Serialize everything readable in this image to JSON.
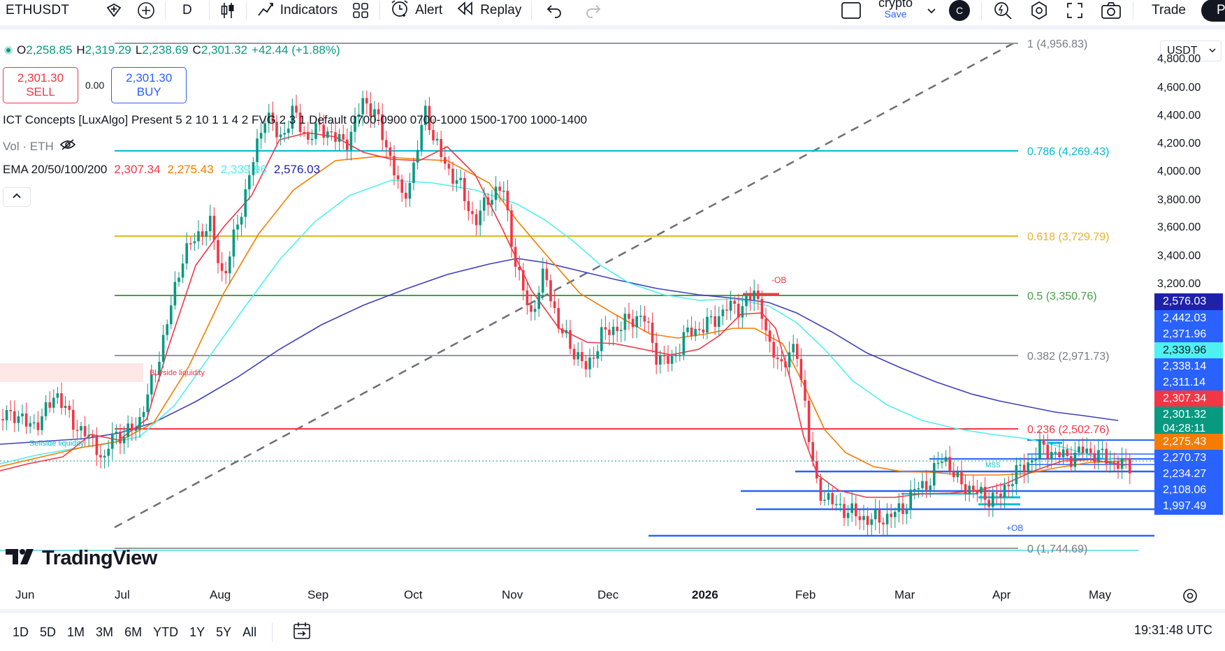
{
  "toolbar": {
    "symbol": "ETHUSDT",
    "interval": "D",
    "indicators_label": "Indicators",
    "alert_label": "Alert",
    "replay_label": "Replay",
    "layout_name": "crypto",
    "layout_save": "Save",
    "avatar_letter": "C",
    "trade_label": "Trade",
    "publish_label": "Pu"
  },
  "legend": {
    "o_label": "O",
    "o_value": "2,258.85",
    "h_label": "H",
    "h_value": "2,319.29",
    "l_label": "L",
    "l_value": "2,238.69",
    "c_label": "C",
    "c_value": "2,301.32",
    "change": "+42.44 (+1.88%)",
    "sell_price": "2,301.30",
    "sell_label": "SELL",
    "spread": "0.00",
    "buy_price": "2,301.30",
    "buy_label": "BUY",
    "ict_indicator": "ICT Concepts [LuxAlgo] Present 5 2 10 1 1 4 2 FVG 2 3 1 Default 0700-0900 0700-1000 1500-1700 1000-1400",
    "vol_indicator": "Vol · ETH",
    "ema_indicator": "EMA 20/50/100/200",
    "ema_values": [
      "2,307.34",
      "2,275.43",
      "2,339.96",
      "2,576.03"
    ]
  },
  "fib_levels": [
    {
      "label": "1 (4,956.83)",
      "color": "#787b86"
    },
    {
      "label": "0.786 (4,269.43)",
      "color": "#00bcd4"
    },
    {
      "label": "0.618 (3,729.79)",
      "color": "#e6b422"
    },
    {
      "label": "0.5 (3,350.76)",
      "color": "#43a047"
    },
    {
      "label": "0.382 (2,971.73)",
      "color": "#787b86"
    },
    {
      "label": "0.236 (2,502.76)",
      "color": "#f23645"
    },
    {
      "label": "0 (1,744.69)",
      "color": "#787b86"
    }
  ],
  "annotations": {
    "buyside": "Buyside liquidity",
    "sellside": "Sellside liquidity",
    "minus_ob": "-OB",
    "plus_ob": "+OB",
    "mss": "MSS"
  },
  "price_axis": {
    "currency": "USDT",
    "ticks": [
      "4,800.00",
      "4,600.00",
      "4,400.00",
      "4,200.00",
      "4,000.00",
      "3,800.00",
      "3,600.00",
      "3,400.00",
      "3,200.00"
    ],
    "tags": [
      {
        "text": "2,576.03",
        "bg": "#1e22aa"
      },
      {
        "text": "2,442.03",
        "bg": "#2962ff"
      },
      {
        "text": "2,371.96",
        "bg": "#2962ff"
      },
      {
        "text": "2,339.96",
        "bg": "#4ff0f0"
      },
      {
        "text": "2,338.14",
        "bg": "#2962ff"
      },
      {
        "text": "2,311.14",
        "bg": "#2962ff"
      },
      {
        "text": "2,307.34",
        "bg": "#f23645"
      },
      {
        "text": "2,301.32",
        "bg": "#089981"
      },
      {
        "text": "04:28:11",
        "bg": "#089981"
      },
      {
        "text": "2,275.43",
        "bg": "#f57c00"
      },
      {
        "text": "2,270.73",
        "bg": "#2962ff"
      },
      {
        "text": "2,234.27",
        "bg": "#2962ff"
      },
      {
        "text": "2,108.06",
        "bg": "#2962ff"
      },
      {
        "text": "1,997.49",
        "bg": "#2962ff"
      }
    ]
  },
  "time_axis": [
    "Jun",
    "Jul",
    "Aug",
    "Sep",
    "Oct",
    "Nov",
    "Dec",
    "2026",
    "Feb",
    "Mar",
    "Apr",
    "May"
  ],
  "bottom_bar": {
    "ranges": [
      "1D",
      "5D",
      "1M",
      "3M",
      "6M",
      "YTD",
      "1Y",
      "5Y",
      "All"
    ],
    "clock": "19:31:48 UTC"
  },
  "watermark": "TradingView",
  "colors": {
    "up": "#089981",
    "down": "#f23645",
    "ema20": "#f23645",
    "ema50": "#f57c00",
    "ema100": "#4ff0f0",
    "ema200": "#3f3fbf"
  }
}
